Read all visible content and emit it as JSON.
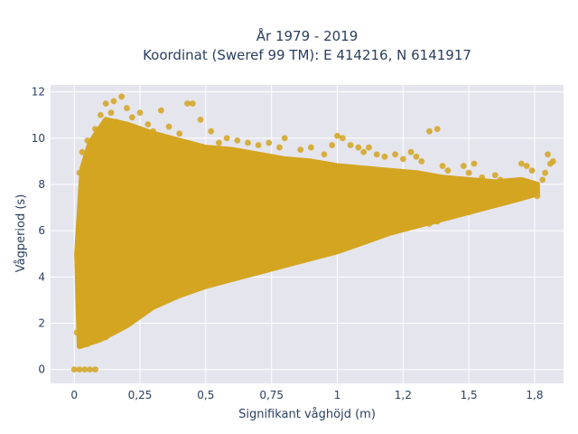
{
  "chart_data": {
    "type": "scatter",
    "title_line1": "År 1979 - 2019",
    "title_line2": "Koordinat (Sweref 99 TM): E 414216, N 6141917",
    "xlabel": "Signifikant våghöjd (m)",
    "ylabel": "Vågperiod (s)",
    "xlim": [
      -0.09,
      1.86
    ],
    "ylim": [
      -0.6,
      12.3
    ],
    "x_ticks": [
      {
        "value": 0,
        "label": "0"
      },
      {
        "value": 0.25,
        "label": "0,25"
      },
      {
        "value": 0.5,
        "label": "0,5"
      },
      {
        "value": 0.75,
        "label": "0,75"
      },
      {
        "value": 1,
        "label": "1"
      },
      {
        "value": 1.25,
        "label": "1,2"
      },
      {
        "value": 1.5,
        "label": "1,5"
      },
      {
        "value": 1.75,
        "label": "1,8"
      }
    ],
    "y_ticks": [
      {
        "value": 0,
        "label": "0"
      },
      {
        "value": 2,
        "label": "2"
      },
      {
        "value": 4,
        "label": "4"
      },
      {
        "value": 6,
        "label": "6"
      },
      {
        "value": 8,
        "label": "8"
      },
      {
        "value": 10,
        "label": "10"
      },
      {
        "value": 12,
        "label": "12"
      }
    ],
    "grid": true,
    "background": "#e5e5ee",
    "marker_color": "#d4a520",
    "series": [
      {
        "values": [
          [
            0.01,
            1.6
          ],
          [
            0.02,
            2.2
          ],
          [
            0.03,
            1.2
          ],
          [
            0.05,
            1.1
          ],
          [
            0.08,
            1.3
          ],
          [
            0.1,
            1.5
          ],
          [
            0.12,
            1.4
          ],
          [
            0.15,
            1.8
          ],
          [
            0.02,
            3.5
          ],
          [
            0.03,
            4.8
          ],
          [
            0.04,
            6.0
          ],
          [
            0.02,
            8.5
          ],
          [
            0.03,
            9.4
          ],
          [
            0.05,
            9.9
          ],
          [
            0.04,
            7.2
          ],
          [
            0.06,
            5.5
          ],
          [
            0.08,
            10.4
          ],
          [
            0.1,
            11.0
          ],
          [
            0.12,
            11.5
          ],
          [
            0.14,
            11.1
          ],
          [
            0.16,
            10.7
          ],
          [
            0.09,
            8.0
          ],
          [
            0.11,
            6.5
          ],
          [
            0.13,
            4.2
          ],
          [
            0.15,
            11.6
          ],
          [
            0.18,
            11.8
          ],
          [
            0.2,
            11.3
          ],
          [
            0.22,
            10.9
          ],
          [
            0.25,
            11.1
          ],
          [
            0.28,
            10.6
          ],
          [
            0.3,
            10.3
          ],
          [
            0.19,
            2.3
          ],
          [
            0.22,
            2.6
          ],
          [
            0.26,
            3.0
          ],
          [
            0.3,
            3.1
          ],
          [
            0.17,
            7.7
          ],
          [
            0.24,
            5.6
          ],
          [
            0.33,
            11.2
          ],
          [
            0.36,
            10.5
          ],
          [
            0.4,
            10.2
          ],
          [
            0.43,
            11.5
          ],
          [
            0.45,
            11.5
          ],
          [
            0.48,
            10.8
          ],
          [
            0.38,
            3.3
          ],
          [
            0.42,
            3.7
          ],
          [
            0.46,
            3.6
          ],
          [
            0.5,
            3.8
          ],
          [
            0.35,
            6.8
          ],
          [
            0.44,
            8.7
          ],
          [
            0.52,
            10.3
          ],
          [
            0.55,
            9.8
          ],
          [
            0.58,
            10.0
          ],
          [
            0.62,
            9.9
          ],
          [
            0.66,
            9.8
          ],
          [
            0.55,
            4.1
          ],
          [
            0.6,
            4.0
          ],
          [
            0.65,
            4.2
          ],
          [
            0.7,
            4.4
          ],
          [
            0.56,
            6.5
          ],
          [
            0.64,
            7.6
          ],
          [
            0.7,
            9.7
          ],
          [
            0.74,
            9.8
          ],
          [
            0.78,
            9.6
          ],
          [
            0.8,
            10.0
          ],
          [
            0.75,
            4.6
          ],
          [
            0.8,
            4.7
          ],
          [
            0.85,
            5.0
          ],
          [
            0.9,
            5.0
          ],
          [
            0.72,
            6.2
          ],
          [
            0.82,
            7.4
          ],
          [
            0.86,
            9.5
          ],
          [
            0.9,
            9.6
          ],
          [
            0.95,
            9.3
          ],
          [
            0.98,
            9.7
          ],
          [
            1.0,
            10.1
          ],
          [
            1.02,
            10.0
          ],
          [
            0.95,
            5.0
          ],
          [
            1.0,
            5.3
          ],
          [
            1.05,
            5.5
          ],
          [
            0.93,
            7.0
          ],
          [
            1.05,
            9.7
          ],
          [
            1.08,
            9.6
          ],
          [
            1.1,
            9.4
          ],
          [
            1.12,
            9.6
          ],
          [
            1.15,
            9.3
          ],
          [
            1.1,
            5.8
          ],
          [
            1.15,
            5.8
          ],
          [
            1.2,
            6.1
          ],
          [
            1.05,
            7.4
          ],
          [
            1.18,
            9.2
          ],
          [
            1.22,
            9.3
          ],
          [
            1.25,
            9.1
          ],
          [
            1.28,
            9.4
          ],
          [
            1.3,
            9.2
          ],
          [
            1.25,
            6.2
          ],
          [
            1.3,
            6.4
          ],
          [
            1.35,
            6.3
          ],
          [
            1.22,
            8.0
          ],
          [
            1.32,
            9.0
          ],
          [
            1.35,
            10.3
          ],
          [
            1.38,
            10.4
          ],
          [
            1.4,
            8.8
          ],
          [
            1.42,
            8.6
          ],
          [
            1.38,
            6.4
          ],
          [
            1.42,
            6.6
          ],
          [
            1.45,
            6.7
          ],
          [
            1.36,
            7.6
          ],
          [
            1.48,
            8.8
          ],
          [
            1.5,
            8.5
          ],
          [
            1.52,
            8.9
          ],
          [
            1.55,
            8.3
          ],
          [
            1.5,
            6.8
          ],
          [
            1.55,
            7.0
          ],
          [
            1.58,
            7.1
          ],
          [
            1.46,
            7.8
          ],
          [
            1.6,
            8.4
          ],
          [
            1.62,
            8.2
          ],
          [
            1.65,
            8.1
          ],
          [
            1.6,
            7.2
          ],
          [
            1.65,
            7.6
          ],
          [
            1.68,
            7.4
          ],
          [
            1.7,
            8.9
          ],
          [
            1.72,
            8.8
          ],
          [
            1.74,
            8.6
          ],
          [
            1.7,
            7.7
          ],
          [
            1.75,
            8.0
          ],
          [
            1.78,
            8.2
          ],
          [
            1.8,
            9.3
          ],
          [
            1.81,
            8.9
          ],
          [
            1.82,
            9.0
          ],
          [
            1.76,
            7.5
          ],
          [
            1.79,
            8.5
          ],
          [
            0.0,
            0.0
          ],
          [
            0.02,
            0.0
          ],
          [
            0.04,
            0.0
          ],
          [
            0.06,
            0.0
          ],
          [
            0.08,
            0.0
          ]
        ]
      }
    ]
  }
}
